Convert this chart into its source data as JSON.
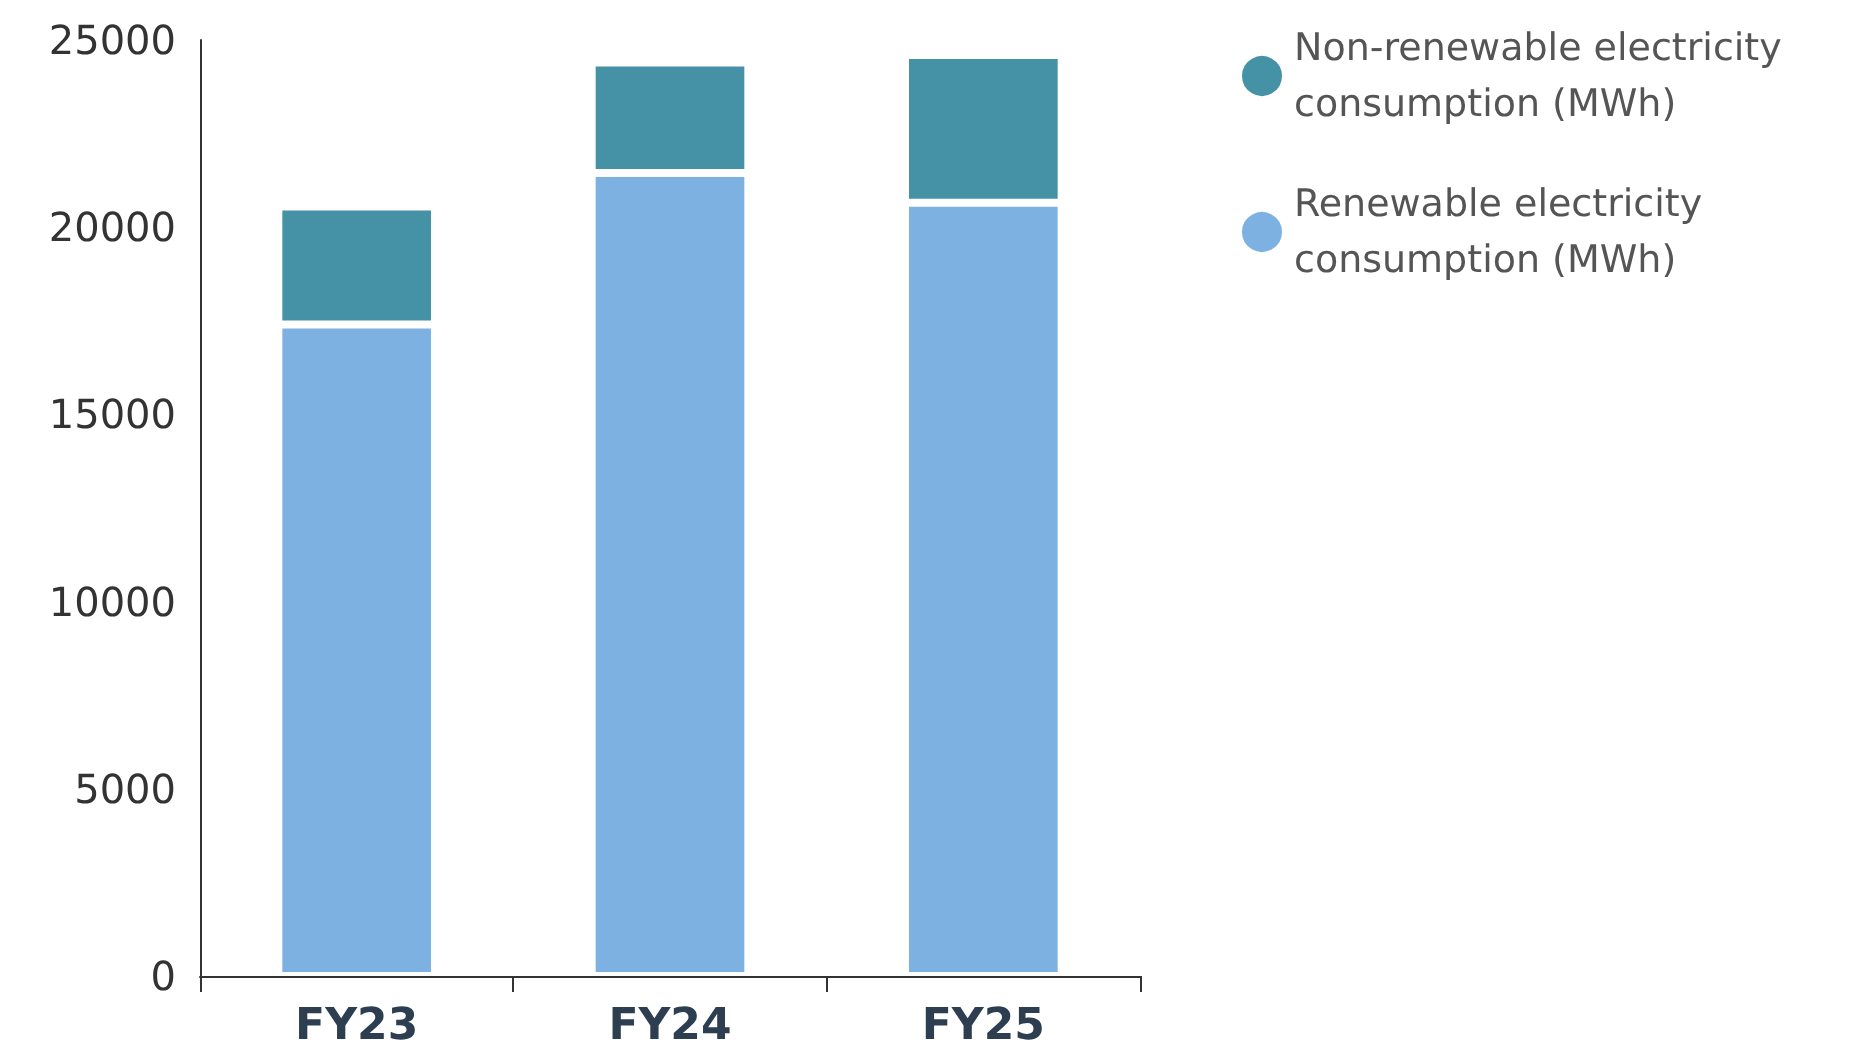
{
  "chart_data": {
    "type": "bar",
    "stacked": true,
    "categories": [
      "FY23",
      "FY24",
      "FY25"
    ],
    "series": [
      {
        "name": "Renewable electricity consumption (MWh)",
        "color": "#7db1e2",
        "values": [
          17400,
          21450,
          20650
        ]
      },
      {
        "name": "Non-renewable electricity consumption (MWh)",
        "color": "#4592a6",
        "values": [
          3150,
          2950,
          3950
        ]
      }
    ],
    "ylim": [
      0,
      25000
    ],
    "yticks": [
      0,
      5000,
      10000,
      15000,
      20000,
      25000
    ],
    "grid": false,
    "legend": "top right"
  }
}
